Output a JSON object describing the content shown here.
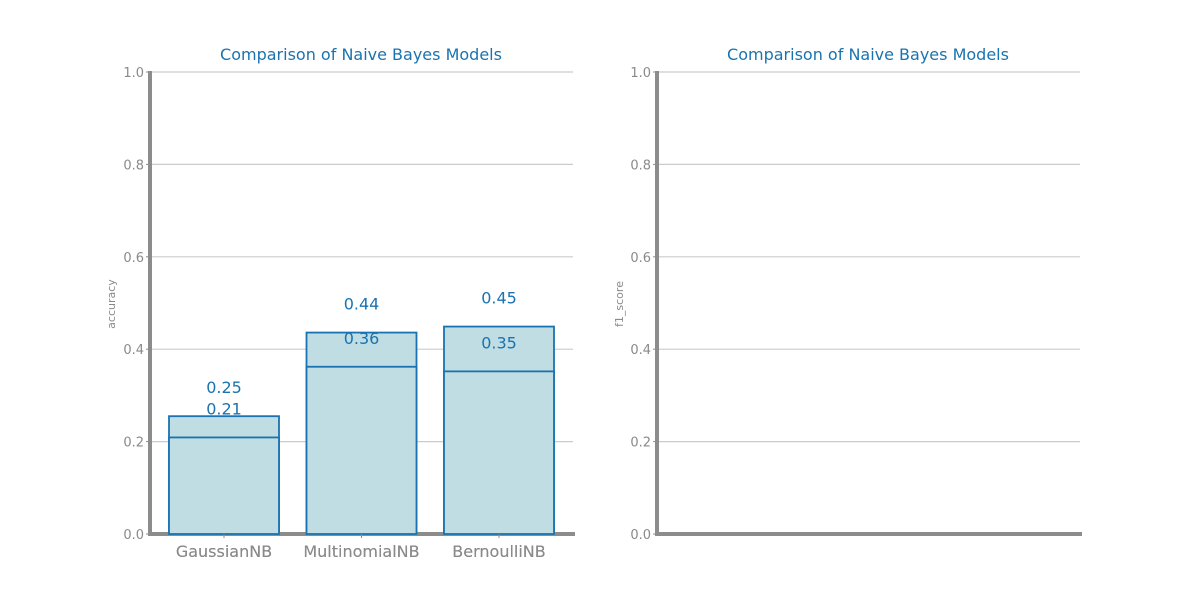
{
  "chart_data": [
    {
      "type": "bar",
      "title": "Comparison of Naive Bayes Models",
      "xlabel": "",
      "ylabel": "accuracy",
      "categories": [
        "GaussianNB",
        "MultinomialNB",
        "BernoulliNB"
      ],
      "values": [
        0.255,
        0.436,
        0.449
      ],
      "value_labels": [
        "0.25",
        "0.44",
        "0.45"
      ],
      "ylim": [
        0,
        1
      ],
      "yticks": [
        "0.0",
        "0.2",
        "0.4",
        "0.6",
        "0.8",
        "1.0"
      ],
      "grid": true,
      "bar_fill": "#bfdde2",
      "bar_edge": "#1a73b0",
      "label_color": "#1a73b0",
      "axis_color": "#8c8c8c"
    },
    {
      "type": "bar",
      "title": "Comparison of Naive Bayes Models",
      "xlabel": "",
      "ylabel": "f1_score",
      "categories": [
        "GaussianNB",
        "MultinomialNB",
        "BernoulliNB"
      ],
      "values": [
        0.209,
        0.362,
        0.352
      ],
      "value_labels": [
        "0.21",
        "0.36",
        "0.35"
      ],
      "ylim": [
        0,
        1
      ],
      "yticks": [
        "0.0",
        "0.2",
        "0.4",
        "0.6",
        "0.8",
        "1.0"
      ],
      "grid": true,
      "bar_fill": "#bfdde2",
      "bar_edge": "#1a73b0",
      "label_color": "#1a73b0",
      "axis_color": "#8c8c8c"
    }
  ]
}
